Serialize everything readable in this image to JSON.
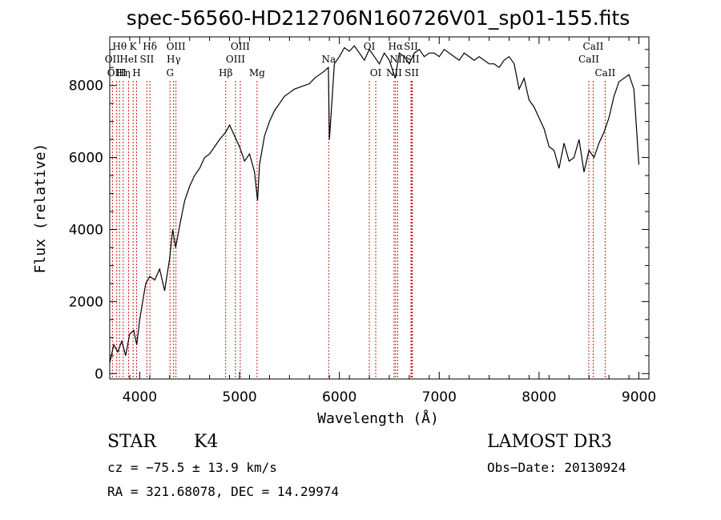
{
  "chart_data": {
    "type": "line",
    "title": "spec-56560-HD212706N160726V01_sp01-155.fits",
    "xlabel": "Wavelength (Å)",
    "ylabel": "Flux (relative)",
    "xlim": [
      3700,
      9100
    ],
    "ylim": [
      -150,
      9350
    ],
    "xticks": [
      4000,
      5000,
      6000,
      7000,
      8000,
      9000
    ],
    "yticks": [
      0,
      2000,
      4000,
      6000,
      8000
    ],
    "grid": false,
    "series": [
      {
        "x": [
          3700,
          3740,
          3780,
          3820,
          3860,
          3900,
          3940,
          3970,
          4000,
          4030,
          4060,
          4100,
          4150,
          4200,
          4250,
          4300,
          4330,
          4360,
          4400,
          4450,
          4500,
          4550,
          4600,
          4650,
          4700,
          4750,
          4800,
          4860,
          4900,
          4950,
          5000,
          5050,
          5100,
          5150,
          5180,
          5200,
          5250,
          5300,
          5350,
          5400,
          5450,
          5500,
          5550,
          5600,
          5650,
          5700,
          5750,
          5800,
          5850,
          5890,
          5900,
          5950,
          6000,
          6050,
          6100,
          6150,
          6200,
          6250,
          6300,
          6350,
          6400,
          6450,
          6500,
          6560,
          6600,
          6650,
          6700,
          6750,
          6800,
          6850,
          6900,
          6950,
          7000,
          7050,
          7100,
          7150,
          7200,
          7250,
          7300,
          7350,
          7400,
          7450,
          7500,
          7550,
          7600,
          7650,
          7700,
          7750,
          7800,
          7850,
          7900,
          7950,
          8000,
          8050,
          8100,
          8150,
          8200,
          8250,
          8300,
          8350,
          8400,
          8450,
          8500,
          8550,
          8600,
          8650,
          8700,
          8750,
          8800,
          8850,
          8900,
          8950,
          9000
        ],
        "y": [
          300,
          800,
          600,
          900,
          500,
          1100,
          1200,
          800,
          1500,
          2000,
          2500,
          2700,
          2600,
          2900,
          2300,
          3200,
          4000,
          3500,
          4100,
          4800,
          5200,
          5500,
          5700,
          6000,
          6100,
          6300,
          6500,
          6700,
          6900,
          6600,
          6300,
          5900,
          6100,
          5600,
          4800,
          5800,
          6600,
          7000,
          7300,
          7500,
          7700,
          7800,
          7900,
          7950,
          8000,
          8050,
          8200,
          8300,
          8400,
          8500,
          6500,
          8600,
          8800,
          9050,
          8950,
          9100,
          8900,
          8700,
          9000,
          8800,
          8600,
          8900,
          8700,
          8200,
          8900,
          8800,
          8600,
          8900,
          9000,
          8800,
          8900,
          8900,
          8800,
          9000,
          8900,
          8800,
          8700,
          8900,
          8800,
          8700,
          8800,
          8700,
          8600,
          8600,
          8500,
          8700,
          8800,
          8600,
          7900,
          8200,
          7600,
          7400,
          7100,
          6800,
          6300,
          6200,
          5700,
          6400,
          5900,
          6000,
          6500,
          5600,
          6200,
          6000,
          6400,
          6700,
          7100,
          7700,
          8100,
          8200,
          8300,
          7900,
          5800
        ]
      }
    ],
    "line_markers": [
      {
        "label": "Hθ",
        "x": 3798,
        "row": 0
      },
      {
        "label": "OII",
        "x": 3727,
        "row": 1
      },
      {
        "label": "OIII",
        "x": 3770,
        "row": 2
      },
      {
        "label": "K",
        "x": 3934,
        "row": 0
      },
      {
        "label": "HeI",
        "x": 3889,
        "row": 1
      },
      {
        "label": "Hη",
        "x": 3835,
        "row": 2
      },
      {
        "label": "Hδ",
        "x": 4102,
        "row": 0
      },
      {
        "label": "SII",
        "x": 4072,
        "row": 1
      },
      {
        "label": "H",
        "x": 3969,
        "row": 2
      },
      {
        "label": "OIII",
        "x": 4363,
        "row": 0
      },
      {
        "label": "Hγ",
        "x": 4340,
        "row": 1
      },
      {
        "label": "G",
        "x": 4304,
        "row": 2
      },
      {
        "label": "OIII",
        "x": 5007,
        "row": 0
      },
      {
        "label": "OIII",
        "x": 4959,
        "row": 1
      },
      {
        "label": "Hβ",
        "x": 4861,
        "row": 2
      },
      {
        "label": "Mg",
        "x": 5175,
        "row": 2
      },
      {
        "label": "Na",
        "x": 5893,
        "row": 1
      },
      {
        "label": "OI",
        "x": 6300,
        "row": 0
      },
      {
        "label": "OI",
        "x": 6364,
        "row": 2
      },
      {
        "label": "Hα",
        "x": 6563,
        "row": 0
      },
      {
        "label": "NII",
        "x": 6584,
        "row": 1
      },
      {
        "label": "NII",
        "x": 6548,
        "row": 2
      },
      {
        "label": "SII",
        "x": 6717,
        "row": 0
      },
      {
        "label": "SII",
        "x": 6731,
        "row": 1
      },
      {
        "label": "SII",
        "x": 6725,
        "row": 2
      },
      {
        "label": "CaII",
        "x": 8542,
        "row": 0
      },
      {
        "label": "CaII",
        "x": 8498,
        "row": 1
      },
      {
        "label": "CaII",
        "x": 8662,
        "row": 2
      }
    ]
  },
  "info": {
    "class_label": "STAR",
    "subclass": "K4",
    "survey": "LAMOST DR3",
    "cz": "cz = −75.5 ± 13.9 km/s",
    "obs_date": "Obs−Date: 20130924",
    "coords": "RA = 321.68078, DEC =  14.29974"
  },
  "colors": {
    "spectrum": "#000000",
    "marker_line": "#d01a1a",
    "axes": "#000000"
  }
}
